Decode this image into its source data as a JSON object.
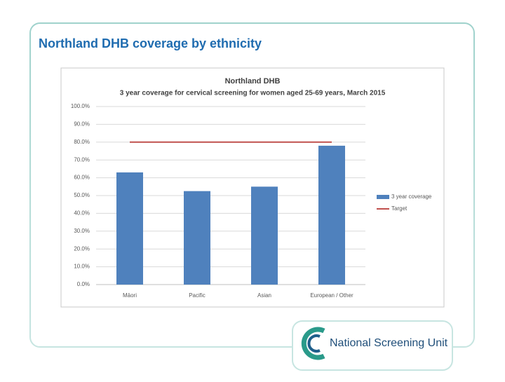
{
  "slide_title": "Northland DHB coverage by ethnicity",
  "logo_text": "National Screening Unit",
  "chart_data": {
    "type": "bar",
    "title": "Northland DHB",
    "subtitle": "3 year coverage for cervical screening for women aged 25-69 years, March 2015",
    "categories": [
      "Māori",
      "Pacific",
      "Asian",
      "European / Other"
    ],
    "series": [
      {
        "name": "3 year coverage",
        "type": "bar",
        "color": "#4f81bd",
        "values": [
          63,
          52.5,
          55,
          78
        ]
      },
      {
        "name": "Target",
        "type": "line",
        "color": "#c0504d",
        "values": [
          80,
          80,
          80,
          80
        ]
      }
    ],
    "ylim": [
      0,
      100
    ],
    "yticks": [
      {
        "value": 0,
        "label": "0.0%"
      },
      {
        "value": 10,
        "label": "10.0%"
      },
      {
        "value": 20,
        "label": "20.0%"
      },
      {
        "value": 30,
        "label": "30.0%"
      },
      {
        "value": 40,
        "label": "40.0%"
      },
      {
        "value": 50,
        "label": "50.0%"
      },
      {
        "value": 60,
        "label": "60.0%"
      },
      {
        "value": 70,
        "label": "70.0%"
      },
      {
        "value": 80,
        "label": "80.0%"
      },
      {
        "value": 90,
        "label": "90.0%"
      },
      {
        "value": 100,
        "label": "100.0%"
      }
    ],
    "grid": true,
    "legend": "right"
  }
}
